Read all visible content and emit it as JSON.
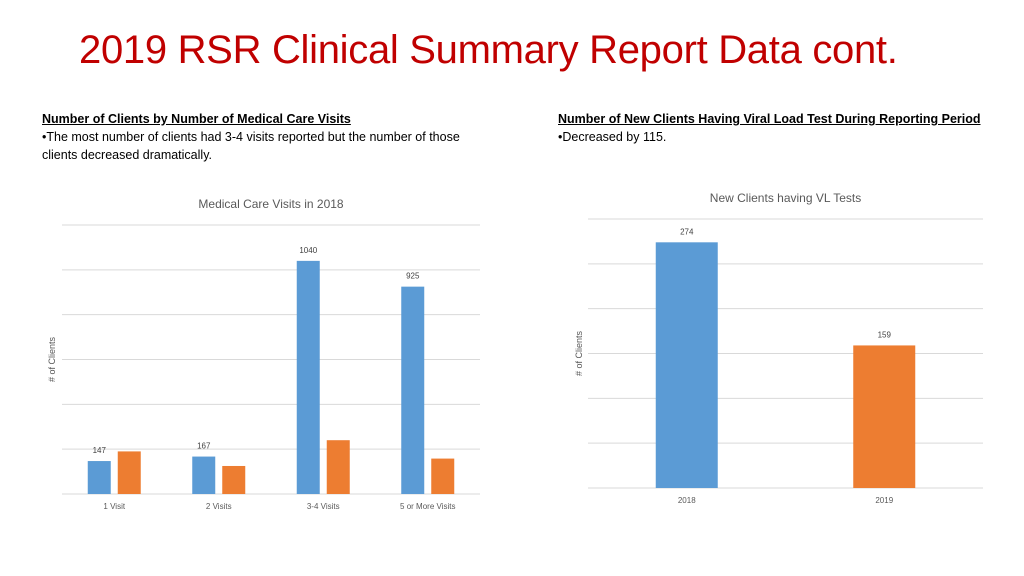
{
  "slide": {
    "title": "2019 RSR Clinical Summary Report Data cont."
  },
  "left_text": {
    "heading": "Number of Clients by Number of Medical Care Visits",
    "bullet": "•The most number of clients had 3-4 visits reported but the number of those clients decreased dramatically."
  },
  "right_text": {
    "heading": "Number of New Clients Having Viral Load Test During Reporting Period",
    "bullet": "•Decreased by 115."
  },
  "chart_data": [
    {
      "type": "bar",
      "title": "Medical Care Visits in 2018",
      "ylabel": "# of Clients",
      "xlabel": "",
      "categories": [
        "1 Visit",
        "2 Visits",
        "3-4 Visits",
        "5 or More Visits"
      ],
      "series": [
        {
          "values": [
            147,
            167,
            1040,
            925
          ],
          "color": "#5b9bd5",
          "labels": [
            "147",
            "167",
            "1040",
            "925"
          ]
        },
        {
          "values": [
            190,
            125,
            240,
            158
          ],
          "color": "#ed7d31",
          "labels": [
            "",
            "",
            "",
            ""
          ]
        }
      ],
      "ylim": [
        0,
        1200
      ],
      "grid": true,
      "legend": "none"
    },
    {
      "type": "bar",
      "title": "New Clients having VL Tests",
      "ylabel": "# of Clients",
      "xlabel": "",
      "categories": [
        "2018",
        "2019"
      ],
      "values": [
        274,
        159
      ],
      "colors": [
        "#5b9bd5",
        "#ed7d31"
      ],
      "labels": [
        "274",
        "159"
      ],
      "ylim": [
        0,
        300
      ],
      "grid": true,
      "legend": "none"
    }
  ]
}
